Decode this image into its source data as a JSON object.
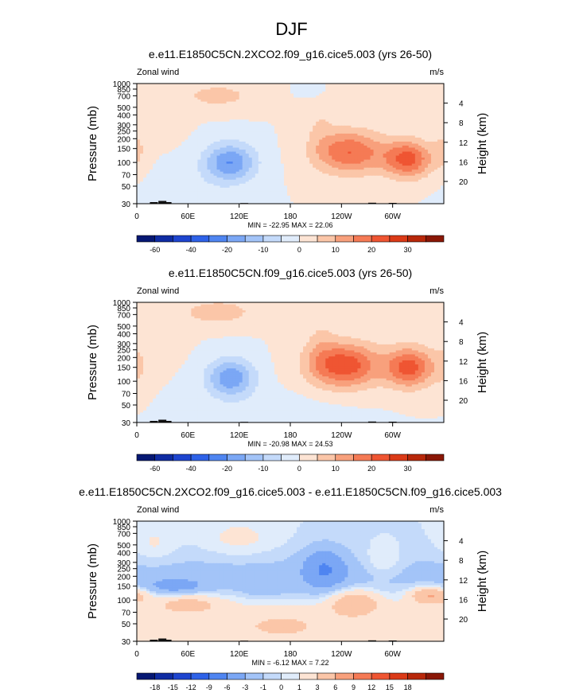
{
  "figure": {
    "title": "DJF"
  },
  "panel_style": {
    "background_color": "#d2e6fb",
    "terrain_color": "#111111"
  },
  "pressure_ticks": [
    30,
    50,
    70,
    100,
    150,
    200,
    250,
    300,
    400,
    500,
    700,
    850,
    1000
  ],
  "height_ticks": [
    4,
    8,
    12,
    16,
    20
  ],
  "lon_ticks": [
    {
      "lon": 0,
      "label": "0"
    },
    {
      "lon": 60,
      "label": "60E"
    },
    {
      "lon": 120,
      "label": "120E"
    },
    {
      "lon": 180,
      "label": "180"
    },
    {
      "lon": 240,
      "label": "120W"
    },
    {
      "lon": 300,
      "label": "60W"
    }
  ],
  "terrain": [
    [
      20,
      2
    ],
    [
      30,
      3.5
    ],
    [
      36,
      2
    ],
    [
      126,
      0.8
    ],
    [
      276,
      1.2
    ],
    [
      300,
      1
    ]
  ],
  "chart_data": [
    {
      "type": "heatmap",
      "title": "e.e11.E1850C5CN.2XCO2.f09_g16.cice5.003 (yrs 26-50)",
      "left_label": "Zonal wind",
      "right_label": "m/s",
      "ylabel": "Pressure (mb)",
      "ylabel_right": "Height (km)",
      "xlim": [
        0,
        360
      ],
      "ylim": [
        1000,
        30
      ],
      "stats": "MIN = -22.95  MAX =  22.06",
      "min": -22.95,
      "max": 22.06,
      "colorbar": {
        "levels": [
          -70,
          -60,
          -50,
          -40,
          -30,
          -20,
          -15,
          -10,
          -5,
          0,
          5,
          10,
          15,
          20,
          25,
          30,
          35
        ],
        "labels": [
          "-60",
          "-40",
          "-20",
          "-10",
          "0",
          "10",
          "20",
          "30"
        ],
        "colors": [
          "#061873",
          "#0f2ca3",
          "#1e45cf",
          "#2e62e8",
          "#4f85f1",
          "#7ba7f5",
          "#a3c4f8",
          "#c4dafa",
          "#e0ecfb",
          "#fde4d4",
          "#fbc6a8",
          "#f8a07c",
          "#f57a55",
          "#ef5532",
          "#db3a17",
          "#b8280a",
          "#8a1706"
        ]
      },
      "features": [
        {
          "kind": "jet",
          "lon": 109,
          "p": 100,
          "peak": -20,
          "rx": 30,
          "ry": 1.25
        },
        {
          "kind": "jet",
          "lon": 250,
          "p": 135,
          "peak": 20,
          "rx": 40,
          "ry": 1.4
        },
        {
          "kind": "jet",
          "lon": 318,
          "p": 110,
          "peak": 22,
          "rx": 28,
          "ry": 1.2
        },
        {
          "kind": "jet",
          "lon": 0,
          "p": 150,
          "peak": 5,
          "rx": 13,
          "ry": 1.4
        },
        {
          "kind": "jet",
          "lon": 95,
          "p": 700,
          "peak": 7,
          "rx": 45,
          "ry": 0.85
        },
        {
          "kind": "jet",
          "lon": 215,
          "p": 300,
          "peak": 4,
          "rx": 18,
          "ry": 2.2
        },
        {
          "kind": "jet",
          "lon": 30,
          "p": 400,
          "peak": 3,
          "rx": 25,
          "ry": 1.5
        },
        {
          "kind": "jet",
          "lon": 205,
          "p": 850,
          "peak": -5,
          "rx": 14,
          "ry": 0.5
        },
        {
          "kind": "jet",
          "lon": 60,
          "p": 45,
          "peak": -2.5,
          "rx": 50,
          "ry": 1.5
        }
      ]
    },
    {
      "type": "heatmap",
      "title": "e.e11.E1850C5CN.f09_g16.cice5.003 (yrs 26-50)",
      "left_label": "Zonal wind",
      "right_label": "m/s",
      "ylabel": "Pressure (mb)",
      "ylabel_right": "Height (km)",
      "xlim": [
        0,
        360
      ],
      "ylim": [
        1000,
        30
      ],
      "stats": "MIN = -20.98  MAX =  24.53",
      "min": -20.98,
      "max": 24.53,
      "colorbar": {
        "levels": [
          -70,
          -60,
          -50,
          -40,
          -30,
          -20,
          -15,
          -10,
          -5,
          0,
          5,
          10,
          15,
          20,
          25,
          30,
          35
        ],
        "labels": [
          "-60",
          "-40",
          "-20",
          "-10",
          "0",
          "10",
          "20",
          "30"
        ],
        "colors": [
          "#061873",
          "#0f2ca3",
          "#1e45cf",
          "#2e62e8",
          "#4f85f1",
          "#7ba7f5",
          "#a3c4f8",
          "#c4dafa",
          "#e0ecfb",
          "#fde4d4",
          "#fbc6a8",
          "#f8a07c",
          "#f57a55",
          "#ef5532",
          "#db3a17",
          "#b8280a",
          "#8a1706"
        ]
      },
      "features": [
        {
          "kind": "jet",
          "lon": 110,
          "p": 110,
          "peak": -19,
          "rx": 28,
          "ry": 1.25
        },
        {
          "kind": "jet",
          "lon": 243,
          "p": 160,
          "peak": 24,
          "rx": 42,
          "ry": 1.45
        },
        {
          "kind": "jet",
          "lon": 320,
          "p": 150,
          "peak": 22,
          "rx": 28,
          "ry": 1.3
        },
        {
          "kind": "jet",
          "lon": 0,
          "p": 160,
          "peak": 5,
          "rx": 13,
          "ry": 1.4
        },
        {
          "kind": "jet",
          "lon": 95,
          "p": 750,
          "peak": 8,
          "rx": 45,
          "ry": 0.85
        },
        {
          "kind": "jet",
          "lon": 215,
          "p": 350,
          "peak": 4,
          "rx": 18,
          "ry": 2.2
        },
        {
          "kind": "jet",
          "lon": 30,
          "p": 400,
          "peak": 3,
          "rx": 25,
          "ry": 1.5
        },
        {
          "kind": "jet",
          "lon": 165,
          "p": 40,
          "peak": -2.5,
          "rx": 80,
          "ry": 1.3
        }
      ]
    },
    {
      "type": "heatmap",
      "title": "e.e11.E1850C5CN.2XCO2.f09_g16.cice5.003 - e.e11.E1850C5CN.f09_g16.cice5.003",
      "left_label": "Zonal wind",
      "right_label": "m/s",
      "ylabel": "Pressure (mb)",
      "ylabel_right": "Height (km)",
      "xlim": [
        0,
        360
      ],
      "ylim": [
        1000,
        30
      ],
      "stats": "MIN =  -6.12  MAX =   7.22",
      "min": -6.12,
      "max": 7.22,
      "colorbar": {
        "levels": [
          -21,
          -18,
          -15,
          -12,
          -9,
          -6,
          -3,
          -1,
          0,
          1,
          3,
          6,
          9,
          12,
          15,
          18,
          21
        ],
        "labels": [
          "-18",
          "-15",
          "-12",
          "-9",
          "-6",
          "-3",
          "-1",
          "0",
          "1",
          "3",
          "6",
          "9",
          "12",
          "15",
          "18"
        ],
        "colors": [
          "#061873",
          "#0f2ca3",
          "#1e45cf",
          "#2e62e8",
          "#4f85f1",
          "#7ba7f5",
          "#a3c4f8",
          "#c4dafa",
          "#e0ecfb",
          "#fde4d4",
          "#fbc6a8",
          "#f8a07c",
          "#f57a55",
          "#ef5532",
          "#db3a17",
          "#b8280a",
          "#8a1706"
        ]
      },
      "features": [
        {
          "kind": "band",
          "p": 50,
          "peak": 2,
          "ry": 1.6
        },
        {
          "kind": "band",
          "p": 200,
          "peak": -1.6,
          "ry": 1.5
        },
        {
          "kind": "jet",
          "lon": 345,
          "p": 115,
          "peak": 6.5,
          "rx": 25,
          "ry": 0.55
        },
        {
          "kind": "jet",
          "lon": 255,
          "p": 95,
          "peak": 5,
          "rx": 30,
          "ry": 0.8
        },
        {
          "kind": "jet",
          "lon": 60,
          "p": 90,
          "peak": 3.5,
          "rx": 40,
          "ry": 0.6
        },
        {
          "kind": "jet",
          "lon": 220,
          "p": 250,
          "peak": -5,
          "rx": 25,
          "ry": 1.4
        },
        {
          "kind": "jet",
          "lon": 45,
          "p": 150,
          "peak": -3.5,
          "rx": 35,
          "ry": 0.5
        },
        {
          "kind": "jet",
          "lon": 150,
          "p": 140,
          "peak": -2,
          "rx": 25,
          "ry": 0.5
        },
        {
          "kind": "jet",
          "lon": 120,
          "p": 600,
          "peak": 1.5,
          "rx": 40,
          "ry": 1.2
        },
        {
          "kind": "jet",
          "lon": 290,
          "p": 300,
          "peak": 1.8,
          "rx": 22,
          "ry": 1.0
        },
        {
          "kind": "jet",
          "lon": 20,
          "p": 500,
          "peak": 1.3,
          "rx": 25,
          "ry": 1.2
        },
        {
          "kind": "jet",
          "lon": 170,
          "p": 45,
          "peak": 1.5,
          "rx": 50,
          "ry": 1.0
        }
      ]
    }
  ]
}
